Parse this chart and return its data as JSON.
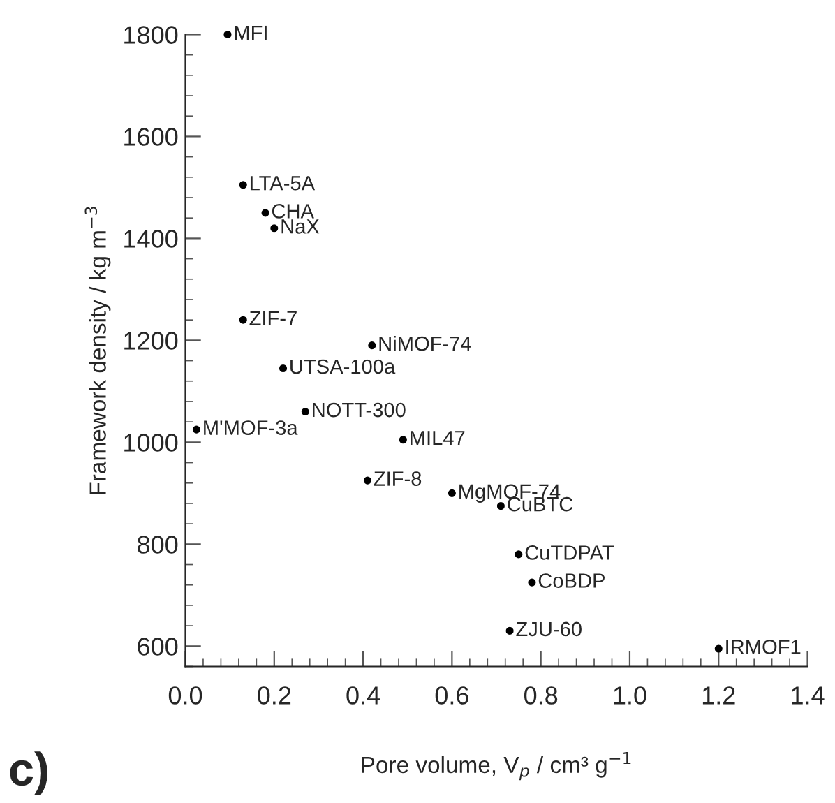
{
  "chart_data": {
    "type": "scatter",
    "xlabel": "Pore volume, V$_{p}$ / cm³ g$^{−1}$",
    "ylabel": "Framework density / kg m$^{−3}$",
    "x": [
      0.095,
      0.13,
      0.18,
      0.2,
      0.13,
      0.42,
      0.22,
      0.27,
      0.025,
      0.49,
      0.41,
      0.6,
      0.71,
      0.75,
      0.78,
      0.73,
      1.2
    ],
    "series": [
      {
        "color": "#000000",
        "values": [
          1800,
          1505,
          1450,
          1420,
          1240,
          1190,
          1145,
          1060,
          1025,
          1005,
          925,
          900,
          875,
          780,
          725,
          630,
          595
        ]
      }
    ],
    "marker": "circle",
    "annotations": [
      {
        "text": "MFI",
        "x": 0.095,
        "y": 1800
      },
      {
        "text": "LTA-5A",
        "x": 0.13,
        "y": 1505
      },
      {
        "text": "CHA",
        "x": 0.18,
        "y": 1450
      },
      {
        "text": "NaX",
        "x": 0.2,
        "y": 1420
      },
      {
        "text": "ZIF-7",
        "x": 0.13,
        "y": 1240
      },
      {
        "text": "NiMOF-74",
        "x": 0.42,
        "y": 1190
      },
      {
        "text": "UTSA-100a",
        "x": 0.22,
        "y": 1145
      },
      {
        "text": "NOTT-300",
        "x": 0.27,
        "y": 1060
      },
      {
        "text": "M'MOF-3a",
        "x": 0.025,
        "y": 1025
      },
      {
        "text": "MIL47",
        "x": 0.49,
        "y": 1005
      },
      {
        "text": "ZIF-8",
        "x": 0.41,
        "y": 925
      },
      {
        "text": "MgMOF-74",
        "x": 0.6,
        "y": 900
      },
      {
        "text": "CuBTC",
        "x": 0.71,
        "y": 875
      },
      {
        "text": "CuTDPAT",
        "x": 0.75,
        "y": 780
      },
      {
        "text": "CoBDP",
        "x": 0.78,
        "y": 725
      },
      {
        "text": "ZJU-60",
        "x": 0.73,
        "y": 630
      },
      {
        "text": "IRMOF1",
        "x": 1.2,
        "y": 595
      },
      "c)"
    ],
    "xlim": [
      0,
      1.4
    ],
    "ylim": [
      560,
      1800
    ],
    "xticks": [
      {
        "value": 0,
        "label": "0.0"
      },
      0.2,
      0.4,
      0.6,
      0.8,
      {
        "value": 1,
        "label": "1.0"
      },
      1.2,
      1.4
    ],
    "yticks": [
      600,
      800,
      1000,
      1200,
      1400,
      1600,
      1800
    ]
  }
}
